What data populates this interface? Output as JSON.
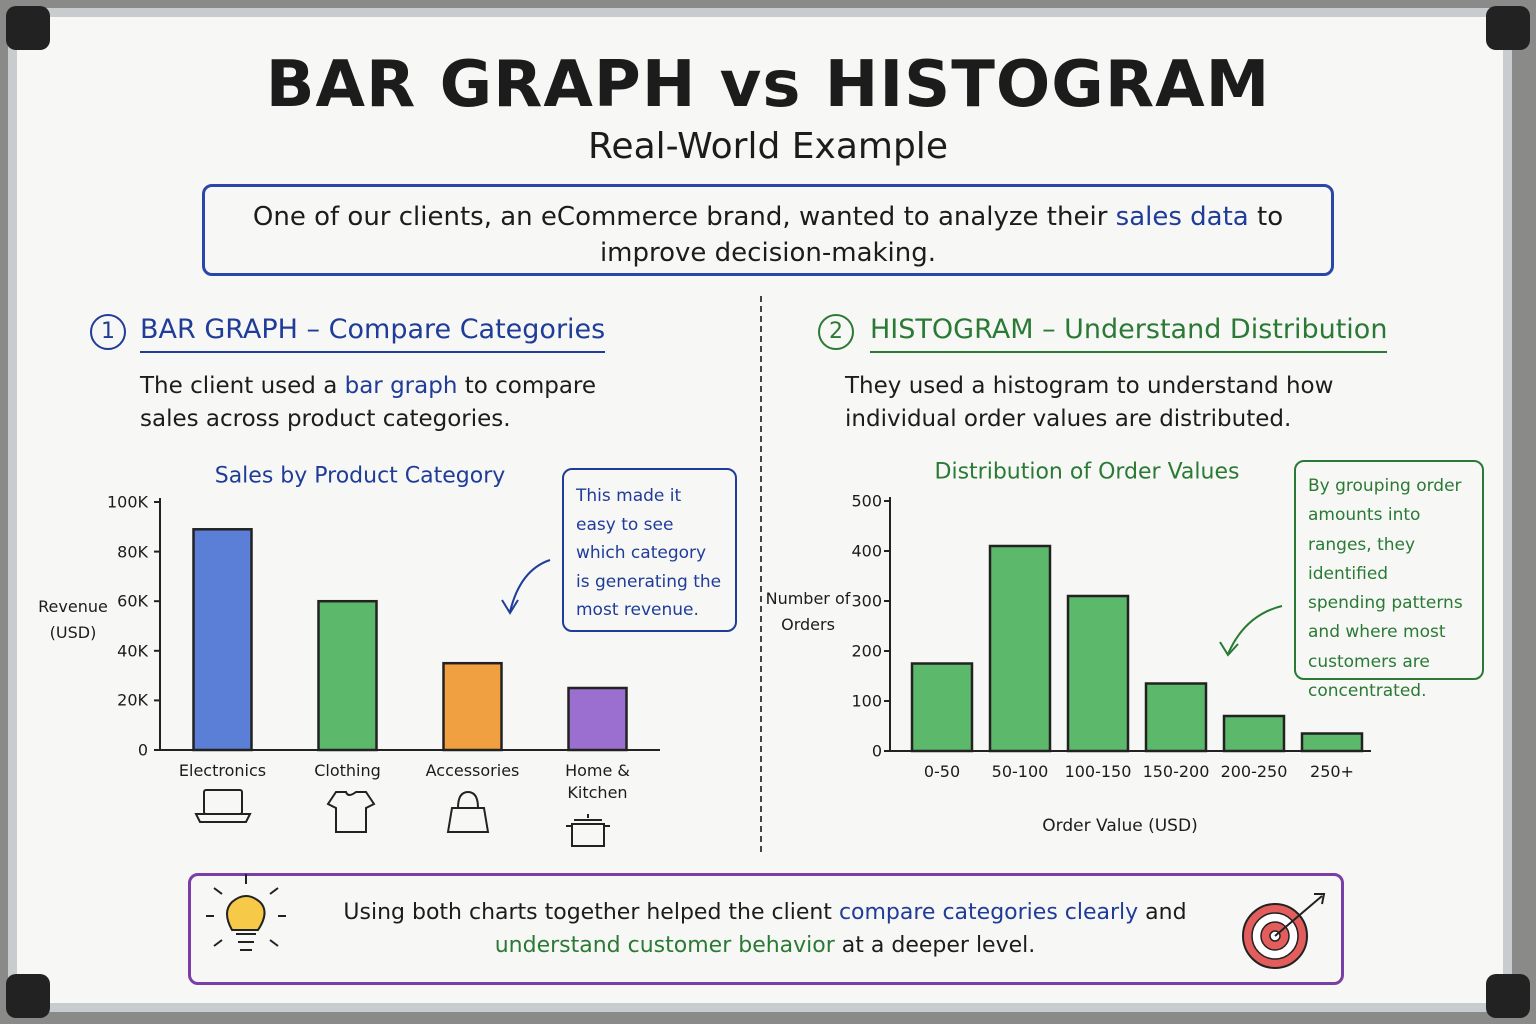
{
  "header": {
    "title": "BAR GRAPH vs HISTOGRAM",
    "subtitle": "Real-World Example"
  },
  "intro": {
    "parts": [
      "One of our clients, an eCommerce brand, wanted to analyze their ",
      "sales data",
      " to improve decision-making."
    ]
  },
  "sections": [
    {
      "number": "1",
      "heading": "BAR GRAPH – Compare Categories",
      "text_parts": [
        "The client used a ",
        "bar graph",
        " to compare sales across product categories."
      ]
    },
    {
      "number": "2",
      "heading": "HISTOGRAM – Understand Distribution",
      "text_parts": [
        "They used a histogram to understand how individual order values are distributed."
      ]
    }
  ],
  "chart_data": [
    {
      "type": "bar",
      "title": "Sales by Product Category",
      "y_label": "Revenue (USD)",
      "categories": [
        "Electronics",
        "Clothing",
        "Accessories",
        "Home & Kitchen"
      ],
      "values": [
        89000,
        60000,
        35000,
        25000
      ],
      "colors": [
        "#5b7fd6",
        "#5cb86a",
        "#f0a040",
        "#9b6fcf"
      ],
      "ylim": [
        0,
        100000
      ],
      "yticks": [
        0,
        {
          "value": 20000,
          "label": "20K"
        },
        {
          "value": 40000,
          "label": "40K"
        },
        {
          "value": 60000,
          "label": "60K"
        },
        {
          "value": 80000,
          "label": "80K"
        },
        {
          "value": 100000,
          "label": "100K"
        }
      ],
      "annotation": "This made it easy to see which category is generating the most revenue."
    },
    {
      "type": "bar",
      "title": "Distribution of Order Values",
      "y_label": "Number of Orders",
      "x_label": "Order Value (USD)",
      "categories": [
        "0-50",
        "50-100",
        "100-150",
        "150-200",
        "200-250",
        "250+"
      ],
      "values": [
        175,
        410,
        310,
        135,
        70,
        35
      ],
      "color": "#5cb86a",
      "ylim": [
        0,
        500
      ],
      "yticks": [
        0,
        100,
        200,
        300,
        400,
        500
      ],
      "annotation": "By grouping order amounts into ranges, they identified spending patterns and where most customers are concentrated."
    }
  ],
  "footer": {
    "parts": [
      "Using both charts together helped the client ",
      "compare categories clearly",
      " and ",
      "understand customer behavior",
      " at a deeper level."
    ]
  }
}
